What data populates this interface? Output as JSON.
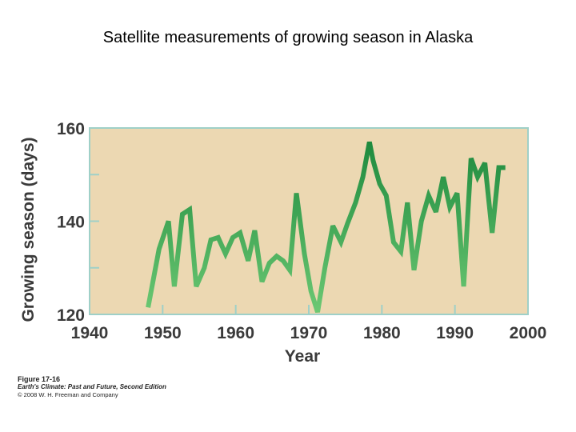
{
  "slide": {
    "title": "Satellite measurements of growing season in Alaska"
  },
  "figure": {
    "number": "Figure 17-16",
    "book": "Earth's Climate: Past and Future, Second Edition",
    "copyright": "© 2008 W. H. Freeman and Company"
  },
  "colors": {
    "plot_bg": "#ecd8b2",
    "frame": "#9fd0c8",
    "line_dark": "#1e8a3e",
    "line_light": "#5fc06a",
    "axis_text": "#3a3a3a"
  },
  "chart_data": {
    "type": "line",
    "title": "",
    "xlabel": "Year",
    "ylabel": "Growing season (days)",
    "xlim": [
      1940,
      2000
    ],
    "ylim": [
      120,
      160
    ],
    "xticks": [
      1940,
      1950,
      1960,
      1970,
      1980,
      1990,
      2000
    ],
    "yticks": [
      120,
      140,
      160
    ],
    "x": [
      1948,
      1949.5,
      1950.8,
      1951.6,
      1952.7,
      1953.7,
      1954.6,
      1955.7,
      1956.6,
      1957.6,
      1958.6,
      1959.6,
      1960.6,
      1961.7,
      1962.6,
      1963.6,
      1964.6,
      1965.6,
      1966.5,
      1967.4,
      1968.3,
      1969.4,
      1970.3,
      1971.2,
      1972.2,
      1973.3,
      1974.4,
      1975.3,
      1976.4,
      1977.4,
      1978.3,
      1978.8,
      1979.7,
      1980.6,
      1981.6,
      1982.6,
      1983.5,
      1984.4,
      1985.4,
      1986.4,
      1987.4,
      1988.4,
      1989.3,
      1990.3,
      1991.2,
      1992.2,
      1993.1,
      1994.1,
      1995.1,
      1996.0,
      1996.9
    ],
    "series": [
      {
        "name": "Growing season",
        "values": [
          121.5,
          134.0,
          140.0,
          126.0,
          141.5,
          142.5,
          126.0,
          130.0,
          136.0,
          136.5,
          133.0,
          136.5,
          137.5,
          131.5,
          138.0,
          127.0,
          131.0,
          132.5,
          131.5,
          129.5,
          146.0,
          133.0,
          125.0,
          120.5,
          130.0,
          139.0,
          135.5,
          139.5,
          144.0,
          149.5,
          157.0,
          153.0,
          148.0,
          145.5,
          135.5,
          133.5,
          144.0,
          129.5,
          140.0,
          145.5,
          142.0,
          149.5,
          143.0,
          146.0,
          126.0,
          153.5,
          149.5,
          152.5,
          137.5,
          151.5,
          151.5
        ]
      }
    ]
  }
}
